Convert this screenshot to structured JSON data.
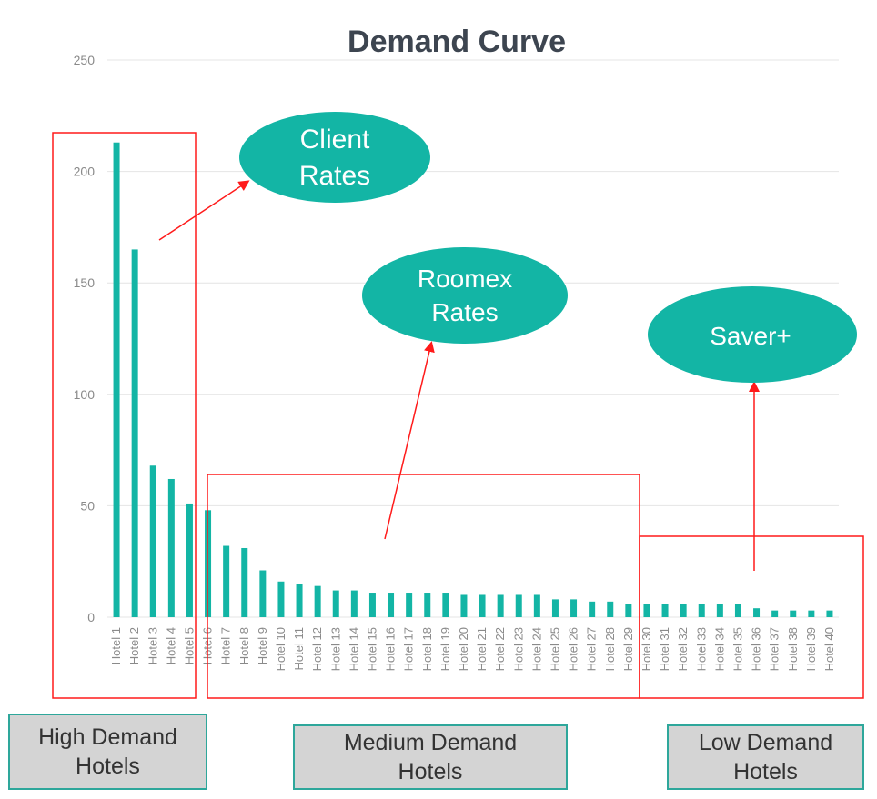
{
  "chart_data": {
    "type": "bar",
    "title": "Demand Curve",
    "xlabel": "",
    "ylabel": "",
    "ylim": [
      0,
      250
    ],
    "yticks": [
      0,
      50,
      100,
      150,
      200,
      250
    ],
    "grid": true,
    "bar_color": "#13b5a5",
    "categories": [
      "Hotel 1",
      "Hotel 2",
      "Hotel 3",
      "Hotel 4",
      "Hotel 5",
      "Hotel 6",
      "Hotel 7",
      "Hotel 8",
      "Hotel 9",
      "Hotel 10",
      "Hotel 11",
      "Hotel 12",
      "Hotel 13",
      "Hotel 14",
      "Hotel 15",
      "Hotel 16",
      "Hotel 17",
      "Hotel 18",
      "Hotel 19",
      "Hotel 20",
      "Hotel 21",
      "Hotel 22",
      "Hotel 23",
      "Hotel 24",
      "Hotel 25",
      "Hotel 26",
      "Hotel 27",
      "Hotel 28",
      "Hotel 29",
      "Hotel 30",
      "Hotel 31",
      "Hotel 32",
      "Hotel 33",
      "Hotel 34",
      "Hotel 35",
      "Hotel 36",
      "Hotel 37",
      "Hotel 38",
      "Hotel 39",
      "Hotel 40"
    ],
    "values": [
      213,
      165,
      68,
      62,
      51,
      48,
      32,
      31,
      21,
      16,
      15,
      14,
      12,
      12,
      11,
      11,
      11,
      11,
      11,
      10,
      10,
      10,
      10,
      10,
      8,
      8,
      7,
      7,
      6,
      6,
      6,
      6,
      6,
      6,
      6,
      4,
      3,
      3,
      3,
      3
    ]
  },
  "annotations": {
    "bubbles": [
      {
        "id": "client",
        "lines": [
          "Client",
          "Rates"
        ],
        "color": "#13b5a5"
      },
      {
        "id": "roomex",
        "lines": [
          "Roomex",
          "Rates"
        ],
        "color": "#13b5a5"
      },
      {
        "id": "saver",
        "lines": [
          "Saver+"
        ],
        "color": "#13b5a5"
      }
    ],
    "segments": {
      "high": "High Demand\nHotels",
      "medium": "Medium Demand\nHotels",
      "low": "Low Demand\nHotels"
    },
    "highlight_color": "#ff1a1a"
  }
}
